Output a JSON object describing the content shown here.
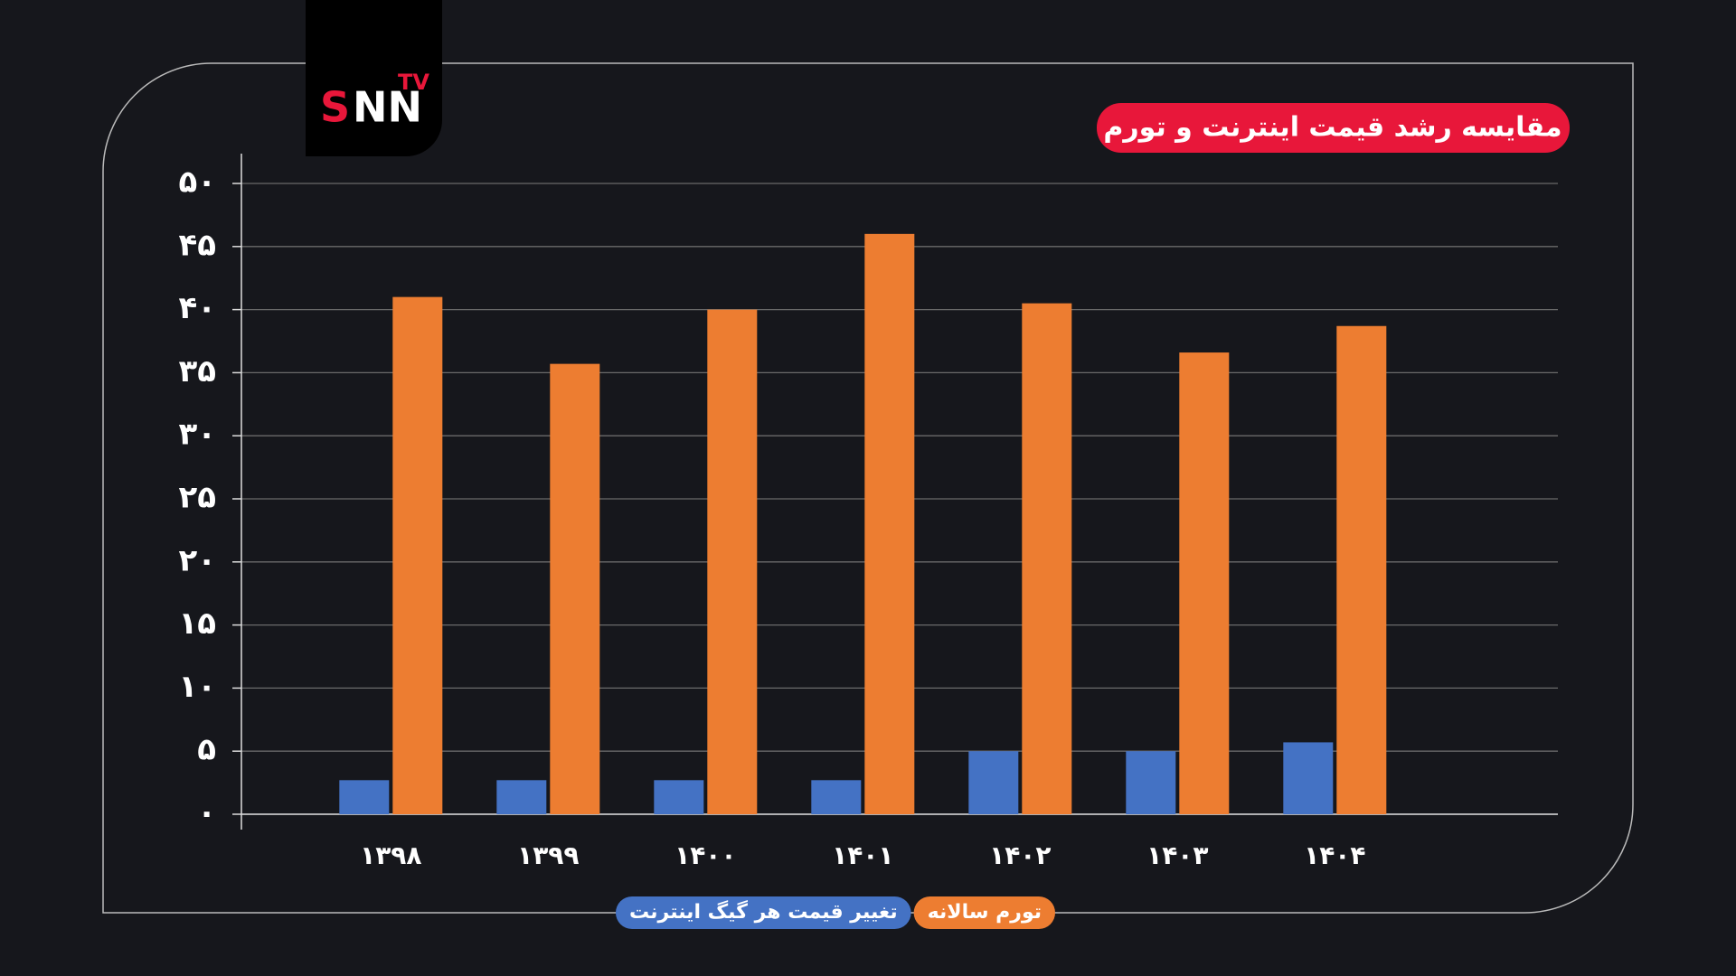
{
  "logo": {
    "brand_s": "S",
    "brand_nn": "NN",
    "badge": "TV"
  },
  "chart_data": {
    "type": "bar",
    "title": "مقایسه رشد قیمت اینترنت و تورم",
    "categories": [
      "۱۳۹۸",
      "۱۳۹۹",
      "۱۴۰۰",
      "۱۴۰۱",
      "۱۴۰۲",
      "۱۴۰۳",
      "۱۴۰۴"
    ],
    "series": [
      {
        "name": "تغییر قیمت هر گیگ اینترنت",
        "color": "#4472c4",
        "values": [
          2.7,
          2.7,
          2.7,
          2.7,
          5,
          5,
          5.7
        ]
      },
      {
        "name": "تورم سالانه",
        "color": "#ed7d31",
        "values": [
          41,
          35.7,
          40,
          46,
          40.5,
          36.6,
          38.7
        ]
      }
    ],
    "ylim": [
      0,
      50
    ],
    "yticks": [
      {
        "value": 0,
        "label": "۰"
      },
      {
        "value": 5,
        "label": "۵"
      },
      {
        "value": 10,
        "label": "۱۰"
      },
      {
        "value": 15,
        "label": "۱۵"
      },
      {
        "value": 20,
        "label": "۲۰"
      },
      {
        "value": 25,
        "label": "۲۵"
      },
      {
        "value": 30,
        "label": "۳۰"
      },
      {
        "value": 35,
        "label": "۳۵"
      },
      {
        "value": 40,
        "label": "۴۰"
      },
      {
        "value": 45,
        "label": "۴۵"
      },
      {
        "value": 50,
        "label": "۵۰"
      }
    ],
    "grid": true
  }
}
